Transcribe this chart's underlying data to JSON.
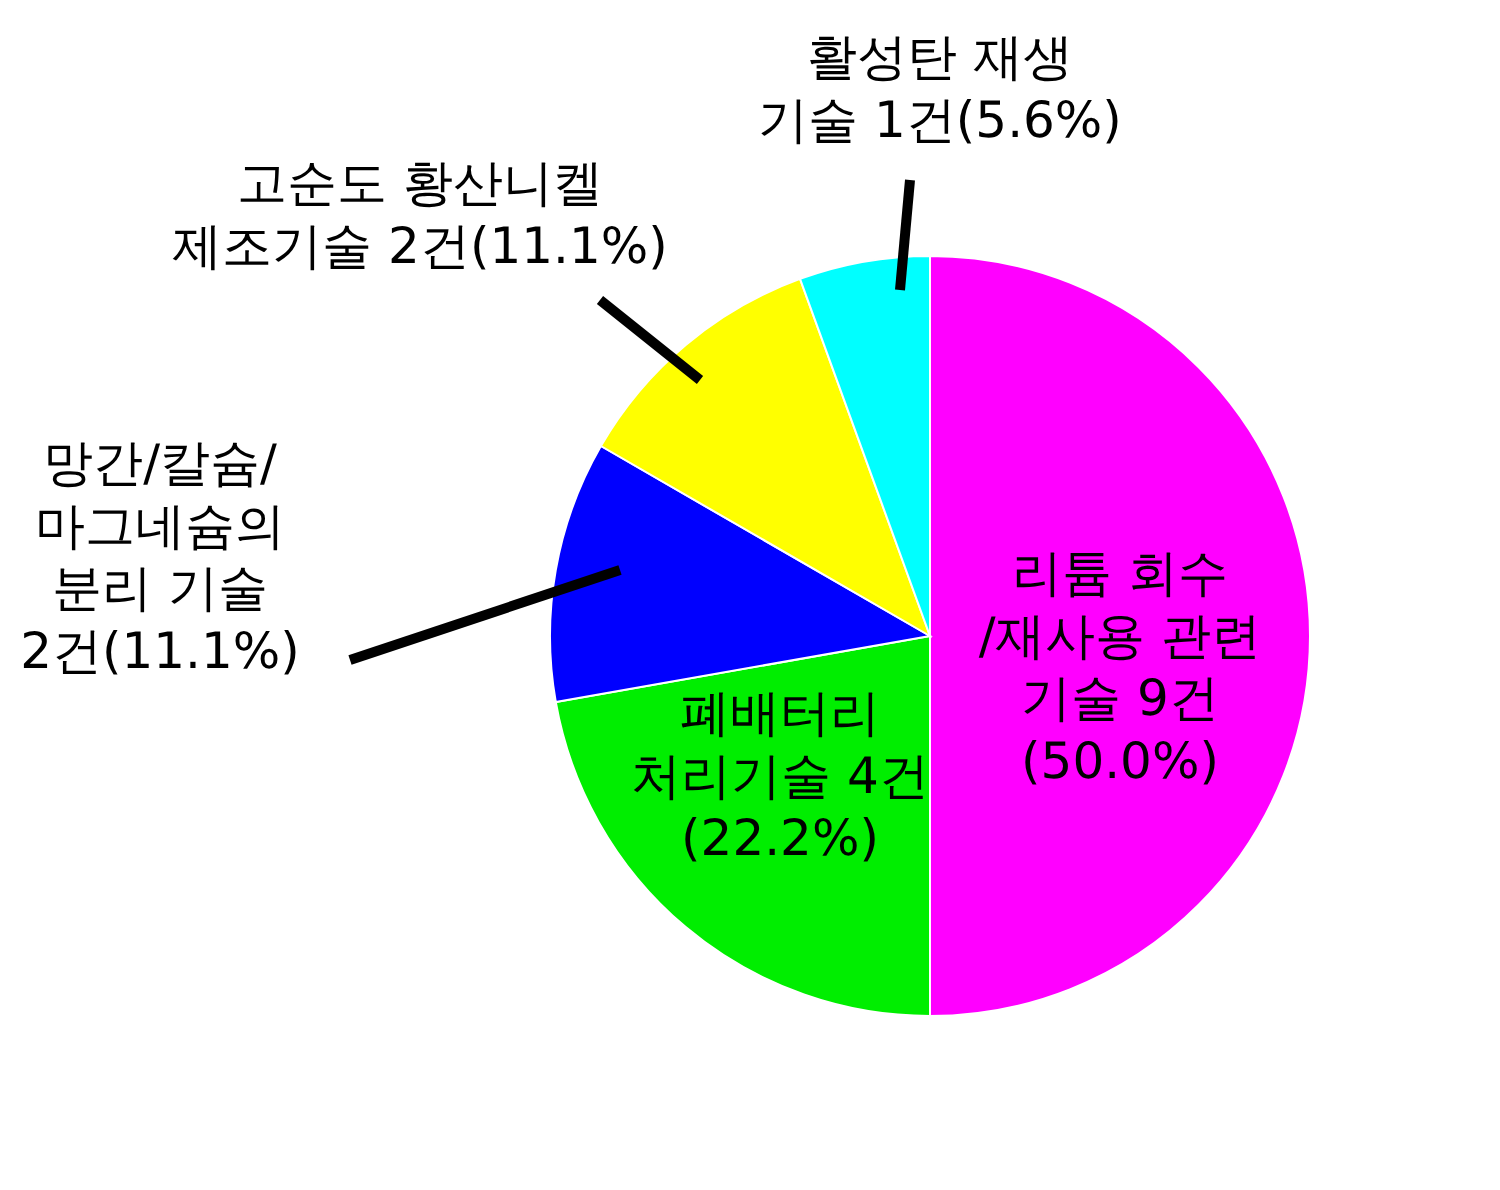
{
  "chart_data": {
    "type": "pie",
    "categories": [
      "리튬 회수\n/재사용 관련\n기술",
      "폐배터리\n처리기술",
      "망간/칼슘/\n마그네슘의\n분리 기술",
      "고순도 황산니켈\n제조기술",
      "활성탄 재생\n기술"
    ],
    "values": [
      9,
      4,
      2,
      2,
      1
    ],
    "value_labels": [
      " 9건\n(50.0%)",
      " 4건\n(22.2%)",
      "\n2건(11.1%)",
      " 2건(11.1%)",
      " 1건(5.6%)"
    ],
    "colors": [
      "#ff00ff",
      "#00ee00",
      "#0000ff",
      "#ffff00",
      "#00ffff"
    ],
    "legend": false
  }
}
